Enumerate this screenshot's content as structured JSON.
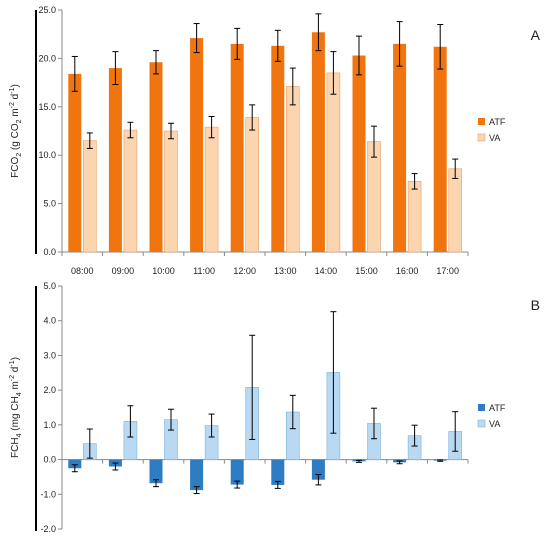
{
  "chart_data": [
    {
      "type": "bar",
      "panel_label": "A",
      "categories": [
        "08:00",
        "09:00",
        "10:00",
        "11:00",
        "12:00",
        "13:00",
        "14:00",
        "15:00",
        "16:00",
        "17:00"
      ],
      "ylabel": "FCO₂ (g CO₂ m⁻² d⁻¹)",
      "ylabel_parts": {
        "t1": "FCO",
        "s1": "2",
        "t2": " (g CO",
        "s2": "2",
        "t3": " m",
        "p1": "-2",
        "t4": " d",
        "p2": "-1",
        "t5": ")"
      },
      "ylim": [
        0,
        25
      ],
      "yticks": [
        "0.0",
        "5.0",
        "10.0",
        "15.0",
        "20.0",
        "25.0"
      ],
      "grid": false,
      "legend_position": "right",
      "series": [
        {
          "name": "ATF",
          "color": "#f0750e",
          "values": [
            18.4,
            19.0,
            19.6,
            22.1,
            21.5,
            21.3,
            22.7,
            20.3,
            21.5,
            21.2
          ],
          "errors": [
            1.8,
            1.7,
            1.2,
            1.5,
            1.6,
            1.6,
            1.9,
            2.0,
            2.3,
            2.3
          ]
        },
        {
          "name": "VA",
          "color": "#fbd4b0",
          "values": [
            11.5,
            12.6,
            12.5,
            12.9,
            13.9,
            17.1,
            18.5,
            11.4,
            7.3,
            8.6
          ],
          "errors": [
            0.8,
            0.8,
            0.8,
            1.1,
            1.3,
            1.9,
            2.2,
            1.6,
            0.8,
            1.0
          ]
        }
      ]
    },
    {
      "type": "bar",
      "panel_label": "B",
      "categories": [
        "08:00",
        "09:00",
        "10:00",
        "11:00",
        "12:00",
        "13:00",
        "14:00",
        "15:00",
        "16:00",
        "17:00"
      ],
      "ylabel": "FCH₄ (mg CH₄ m⁻² d⁻¹)",
      "ylabel_parts": {
        "t1": "FCH",
        "s1": "4",
        "t2": " (mg CH",
        "s2": "4",
        "t3": " m",
        "p1": "-2",
        "t4": " d",
        "p2": "-1",
        "t5": ")"
      },
      "ylim": [
        -2,
        5
      ],
      "yticks": [
        "-2.0",
        "-1.0",
        "0.0",
        "1.0",
        "2.0",
        "3.0",
        "4.0",
        "5.0"
      ],
      "grid": false,
      "legend_position": "right",
      "series": [
        {
          "name": "ATF",
          "color": "#2e7cc1",
          "values": [
            -0.25,
            -0.2,
            -0.68,
            -0.88,
            -0.72,
            -0.73,
            -0.58,
            -0.05,
            -0.08,
            -0.03
          ],
          "errors": [
            0.1,
            0.1,
            0.1,
            0.1,
            0.1,
            0.1,
            0.15,
            0.03,
            0.04,
            0.02
          ]
        },
        {
          "name": "VA",
          "color": "#b9d9f2",
          "values": [
            0.46,
            1.1,
            1.15,
            0.98,
            2.08,
            1.37,
            2.51,
            1.04,
            0.69,
            0.81
          ],
          "errors": [
            0.42,
            0.45,
            0.3,
            0.33,
            1.5,
            0.48,
            1.75,
            0.44,
            0.3,
            0.57
          ]
        }
      ]
    }
  ]
}
